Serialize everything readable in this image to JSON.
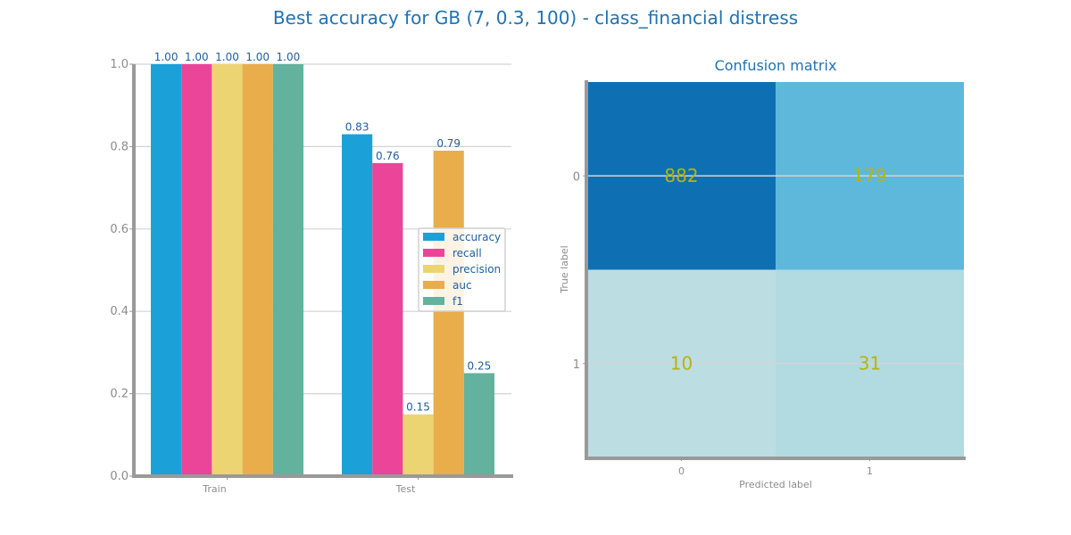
{
  "title": "Best accuracy for GB (7, 0.3, 100) - class_financial distress",
  "chart_data": [
    {
      "type": "bar",
      "categories": [
        "Train",
        "Test"
      ],
      "series": [
        {
          "name": "accuracy",
          "values": [
            1.0,
            0.83
          ],
          "color": "#1ba1d8"
        },
        {
          "name": "recall",
          "values": [
            1.0,
            0.76
          ],
          "color": "#ea4599"
        },
        {
          "name": "precision",
          "values": [
            1.0,
            0.15
          ],
          "color": "#edd472"
        },
        {
          "name": "auc",
          "values": [
            1.0,
            0.79
          ],
          "color": "#e9ad4c"
        },
        {
          "name": "f1",
          "values": [
            1.0,
            0.25
          ],
          "color": "#62b29e"
        }
      ],
      "data_labels": [
        [
          "1.00",
          "0.83"
        ],
        [
          "1.00",
          "0.76"
        ],
        [
          "1.00",
          "0.15"
        ],
        [
          "1.00",
          "0.79"
        ],
        [
          "1.00",
          "0.25"
        ]
      ],
      "ylim": [
        0,
        1.0
      ],
      "yticks": [
        "0.0",
        "0.2",
        "0.4",
        "0.6",
        "0.8",
        "1.0"
      ],
      "grid": true,
      "legend_position": "center-right"
    },
    {
      "type": "heatmap",
      "title": "Confusion matrix",
      "xlabel": "Predicted label",
      "ylabel": "True label",
      "x_ticks": [
        "0",
        "1"
      ],
      "y_ticks": [
        "0",
        "1"
      ],
      "matrix": [
        [
          882,
          179
        ],
        [
          10,
          31
        ]
      ],
      "cell_colors": [
        [
          "#0e70b3",
          "#5db8db"
        ],
        [
          "#bcdde2",
          "#b2dae1"
        ]
      ]
    }
  ]
}
